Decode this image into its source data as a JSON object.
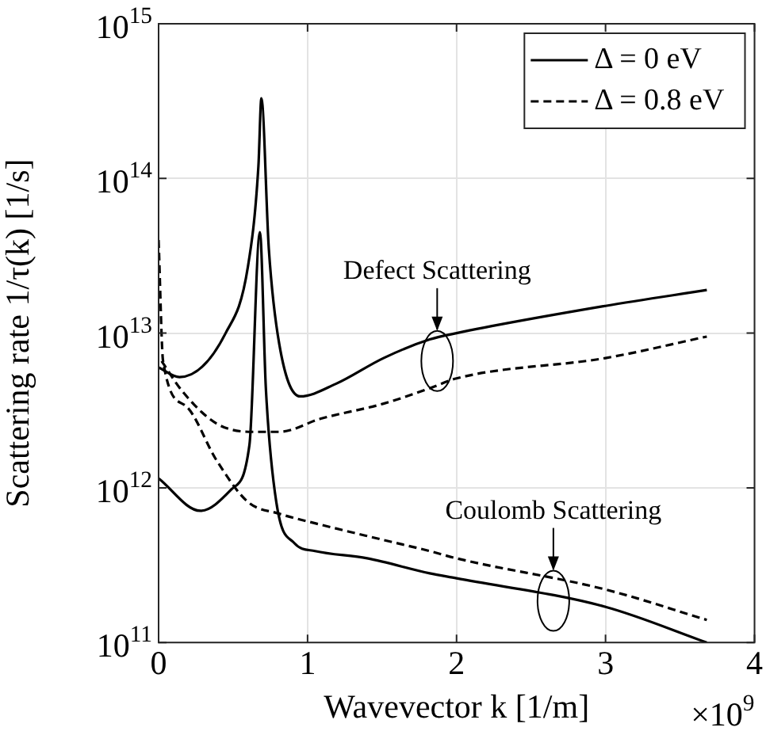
{
  "chart_data": {
    "type": "line",
    "xlabel": "Wavevector k [1/m]",
    "ylabel": "Scattering rate 1/τ(k) [1/s]",
    "xlim": [
      0,
      4
    ],
    "xticks": [
      0,
      1,
      2,
      3,
      4
    ],
    "ylim": [
      100000000000.0,
      1000000000000000.0
    ],
    "yticks": [
      {
        "value": 100000000000.0,
        "label": "10$^{11}$"
      },
      {
        "value": 1000000000000.0,
        "label": "10$^{12}$"
      },
      {
        "value": 10000000000000.0,
        "label": "10$^{13}$"
      },
      {
        "value": 100000000000000.0,
        "label": "10$^{14}$"
      },
      {
        "value": 1000000000000000.0,
        "label": "10$^{15}$"
      }
    ],
    "log": true,
    "grid": true,
    "legend": "top right",
    "marker": "none",
    "series": [
      {
        "name": "Δ = 0 eV",
        "color": "#000000",
        "line_style": "solid",
        "x": [
          0,
          0.14,
          0.45,
          0.6,
          0.67,
          0.69,
          0.74,
          0.81,
          0.95,
          1.19,
          1.51,
          1.82,
          2.0,
          3.0,
          3.68
        ],
        "values": [
          6000000000000.0,
          5200000000000.0,
          10000000000000.0,
          27000000000000.0,
          120000000000000.0,
          330000000000000.0,
          35000000000000.0,
          8500000000000.0,
          3900000000000.0,
          4700000000000.0,
          6900000000000.0,
          9100000000000.0,
          10000000000000.0,
          15000000000000.0,
          19000000000000.0
        ]
      },
      {
        "name": "Δ = 0.8 eV",
        "color": "#000000",
        "line_style": "dashed",
        "x": [
          0.02,
          0.16,
          0.39,
          0.63,
          0.81,
          1.09,
          1.51,
          1.82,
          2.0,
          3.0,
          3.68
        ],
        "values": [
          6600000000000.0,
          4200000000000.0,
          2600000000000.0,
          2300000000000.0,
          2300000000000.0,
          2800000000000.0,
          3500000000000.0,
          4400000000000.0,
          5100000000000.0,
          6900000000000.0,
          9500000000000.0
        ]
      },
      {
        "color": "#000000",
        "line_style": "solid",
        "x": [
          0,
          0.28,
          0.49,
          0.61,
          0.68,
          0.72,
          0.79,
          0.91,
          1.05,
          1.4,
          1.82,
          2.0,
          3.0,
          3.68
        ],
        "values": [
          1150000000000.0,
          710000000000.0,
          980000000000.0,
          1900000000000.0,
          45000000000000.0,
          4400000000000.0,
          810000000000.0,
          440000000000.0,
          390000000000.0,
          350000000000.0,
          280000000000.0,
          260000000000.0,
          170000000000.0,
          100000000000.0
        ]
      },
      {
        "color": "#000000",
        "line_style": "dashed",
        "x": [
          0,
          0.03,
          0.18,
          0.39,
          0.6,
          0.81,
          1.05,
          1.51,
          1.82,
          2.0,
          3.0,
          3.68
        ],
        "values": [
          40000000000000.0,
          6600000000000.0,
          3400000000000.0,
          1500000000000.0,
          810000000000.0,
          680000000000.0,
          590000000000.0,
          460000000000.0,
          390000000000.0,
          350000000000.0,
          220000000000.0,
          140000000000.0
        ]
      }
    ],
    "annotations": [
      {
        "text": "Defect Scattering",
        "x": 1.87,
        "y": 6600000000000.0
      },
      {
        "text": "Coulomb Scattering",
        "x": 2.65,
        "y": 186000000000.0
      },
      "×10$^{9}$"
    ]
  }
}
